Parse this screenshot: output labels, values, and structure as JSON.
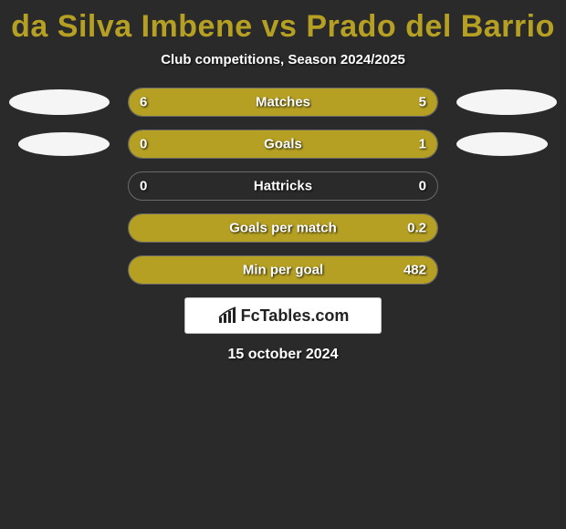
{
  "title": "da Silva Imbene vs Prado del Barrio",
  "subtitle": "Club competitions, Season 2024/2025",
  "date": "15 october 2024",
  "logo_text": "FcTables.com",
  "colors": {
    "left_fill": "#b5a023",
    "right_fill": "#b5a023",
    "background": "#2a2a2a",
    "title_color": "#b5a023",
    "avatar_color": "#f5f5f5",
    "border_color": "#6a6a6a"
  },
  "rows": [
    {
      "label": "Matches",
      "left_value": "6",
      "right_value": "5",
      "left_pct": 54.5,
      "right_pct": 45.5,
      "show_avatars": true,
      "show_left_value": true,
      "show_right_value": true
    },
    {
      "label": "Goals",
      "left_value": "0",
      "right_value": "1",
      "left_pct": 20,
      "right_pct": 80,
      "show_avatars": true,
      "avatar_smaller": true,
      "show_left_value": true,
      "show_right_value": true
    },
    {
      "label": "Hattricks",
      "left_value": "0",
      "right_value": "0",
      "left_pct": 0,
      "right_pct": 0,
      "show_avatars": false,
      "show_left_value": true,
      "show_right_value": true
    },
    {
      "label": "Goals per match",
      "left_value": "",
      "right_value": "0.2",
      "left_pct": 0,
      "right_pct": 100,
      "show_avatars": false,
      "show_left_value": false,
      "show_right_value": true
    },
    {
      "label": "Min per goal",
      "left_value": "",
      "right_value": "482",
      "left_pct": 0,
      "right_pct": 100,
      "show_avatars": false,
      "show_left_value": false,
      "show_right_value": true
    }
  ]
}
